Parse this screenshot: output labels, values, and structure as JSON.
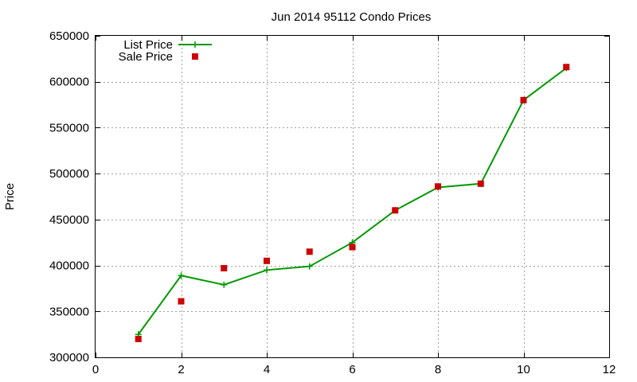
{
  "chart_data": {
    "type": "line",
    "title": "Jun 2014 95112 Condo Prices",
    "xlabel": "",
    "ylabel": "Price",
    "xlim": [
      0,
      12
    ],
    "ylim": [
      300000,
      650000
    ],
    "xticks": [
      0,
      2,
      4,
      6,
      8,
      10,
      12
    ],
    "yticks": [
      300000,
      350000,
      400000,
      450000,
      500000,
      550000,
      600000,
      650000
    ],
    "grid": true,
    "legend_position": "top-left",
    "series": [
      {
        "name": "List Price",
        "style": "line-with-plus-markers",
        "color": "#009900",
        "x": [
          1,
          2,
          3,
          4,
          5,
          6,
          7,
          8,
          9,
          10,
          11
        ],
        "values": [
          325000,
          389000,
          379000,
          395000,
          399000,
          425000,
          460000,
          485000,
          489000,
          580000,
          615000
        ]
      },
      {
        "name": "Sale Price",
        "style": "square-markers",
        "color": "#cc0000",
        "x": [
          1,
          2,
          3,
          4,
          5,
          6,
          7,
          8,
          9,
          10,
          11
        ],
        "values": [
          320000,
          361000,
          397000,
          405000,
          415000,
          420000,
          460000,
          486000,
          489000,
          580000,
          616000
        ]
      }
    ]
  }
}
